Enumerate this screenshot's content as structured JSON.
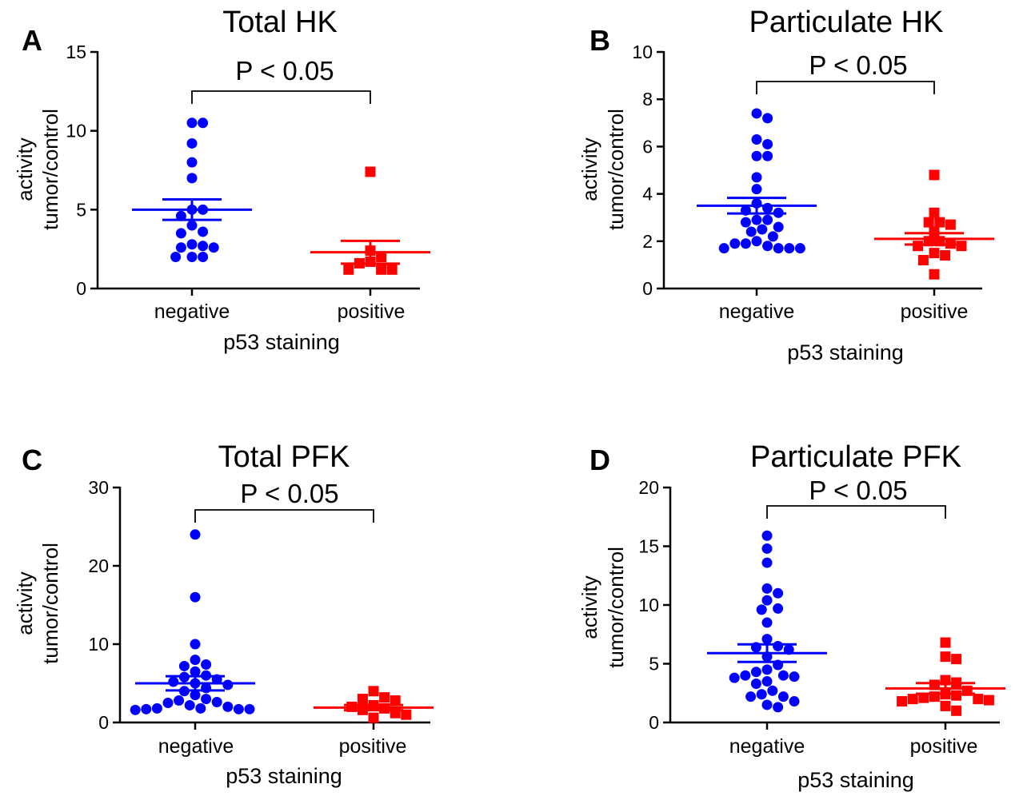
{
  "colors": {
    "negative": "#0000ff",
    "positive": "#ff0000",
    "axis": "#000000"
  },
  "chart_data": [
    {
      "type": "scatter",
      "panel_letter": "A",
      "title": "Total HK",
      "ylabel_line1": "activity",
      "ylabel_line2": "tumor/control",
      "xlabel": "p53 staining",
      "categories": [
        "negative",
        "positive"
      ],
      "ylim": [
        0,
        15
      ],
      "yticks": [
        0,
        5,
        10,
        15
      ],
      "significance": "P < 0.05",
      "series": [
        {
          "name": "negative",
          "marker": "circle",
          "mean": 5.0,
          "sem": 0.65,
          "values": [
            10.5,
            10.5,
            9.2,
            8.0,
            7.0,
            5.0,
            5.0,
            4.6,
            4.0,
            3.6,
            3.5,
            2.8,
            2.7,
            2.6,
            2.6,
            2.0,
            2.0,
            2.0
          ]
        },
        {
          "name": "positive",
          "marker": "square",
          "mean": 2.3,
          "sem": 0.72,
          "values": [
            7.4,
            2.4,
            2.0,
            1.7,
            1.6,
            1.2,
            1.2,
            1.2
          ]
        }
      ]
    },
    {
      "type": "scatter",
      "panel_letter": "B",
      "title": "Particulate HK",
      "ylabel_line1": "activity",
      "ylabel_line2": "tumor/control",
      "xlabel": "p53 staining",
      "categories": [
        "negative",
        "positive"
      ],
      "ylim": [
        0,
        10
      ],
      "yticks": [
        0,
        2,
        4,
        6,
        8,
        10
      ],
      "significance": "P < 0.05",
      "series": [
        {
          "name": "negative",
          "marker": "circle",
          "mean": 3.5,
          "sem": 0.33,
          "values": [
            7.4,
            7.2,
            6.3,
            6.1,
            5.6,
            5.6,
            4.7,
            4.2,
            3.6,
            3.4,
            3.3,
            3.2,
            2.9,
            2.9,
            2.8,
            2.6,
            2.5,
            2.4,
            2.2,
            2.0,
            1.9,
            1.9,
            1.8,
            1.7,
            1.7,
            1.7,
            1.7
          ]
        },
        {
          "name": "positive",
          "marker": "square",
          "mean": 2.1,
          "sem": 0.24,
          "values": [
            4.8,
            3.2,
            2.8,
            2.8,
            2.7,
            2.4,
            2.0,
            2.0,
            1.9,
            1.8,
            1.8,
            1.5,
            1.4,
            1.2,
            0.6
          ]
        }
      ]
    },
    {
      "type": "scatter",
      "panel_letter": "C",
      "title": "Total PFK",
      "ylabel_line1": "activity",
      "ylabel_line2": "tumor/control",
      "xlabel": "p53 staining",
      "categories": [
        "negative",
        "positive"
      ],
      "ylim": [
        0,
        30
      ],
      "yticks": [
        0,
        10,
        20,
        30
      ],
      "significance": "P < 0.05",
      "series": [
        {
          "name": "negative",
          "marker": "circle",
          "mean": 5.0,
          "sem": 0.9,
          "values": [
            24.0,
            16.0,
            10.0,
            8.0,
            7.4,
            7.2,
            6.5,
            6.0,
            5.8,
            5.5,
            5.2,
            5.0,
            4.8,
            4.4,
            4.0,
            3.5,
            3.0,
            2.8,
            2.6,
            2.5,
            2.2,
            2.0,
            1.8,
            1.8,
            1.7,
            1.7,
            1.7,
            1.6
          ]
        },
        {
          "name": "positive",
          "marker": "square",
          "mean": 1.9,
          "sem": 0.33,
          "values": [
            4.0,
            3.2,
            3.0,
            2.8,
            2.2,
            2.0,
            1.8,
            1.6,
            1.2,
            1.0,
            0.6
          ]
        }
      ]
    },
    {
      "type": "scatter",
      "panel_letter": "D",
      "title": "Particulate PFK",
      "ylabel_line1": "activity",
      "ylabel_line2": "tumor/control",
      "xlabel": "p53 staining",
      "categories": [
        "negative",
        "positive"
      ],
      "ylim": [
        0,
        20
      ],
      "yticks": [
        0,
        5,
        10,
        15,
        20
      ],
      "significance": "P < 0.05",
      "series": [
        {
          "name": "negative",
          "marker": "circle",
          "mean": 5.9,
          "sem": 0.75,
          "values": [
            15.9,
            14.8,
            13.6,
            11.4,
            11.0,
            10.4,
            9.7,
            9.6,
            8.5,
            7.1,
            6.5,
            6.4,
            6.2,
            5.6,
            4.9,
            4.5,
            4.3,
            4.0,
            4.0,
            3.9,
            3.8,
            3.5,
            3.3,
            2.7,
            2.4,
            2.2,
            2.2,
            1.8,
            1.5,
            1.3
          ]
        },
        {
          "name": "positive",
          "marker": "square",
          "mean": 2.9,
          "sem": 0.45,
          "values": [
            6.8,
            5.6,
            5.4,
            3.6,
            3.4,
            3.2,
            2.7,
            2.4,
            2.3,
            2.2,
            2.1,
            2.0,
            2.0,
            1.9,
            1.8,
            1.4,
            1.0
          ]
        }
      ]
    }
  ]
}
